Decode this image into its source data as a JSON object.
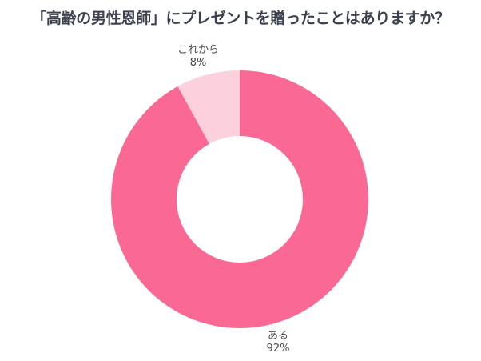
{
  "title": "「高齢の男性恩師」にプレゼントを贈ったことはありますか？",
  "chart_data": {
    "type": "pie",
    "variant": "donut",
    "title": "「高齢の男性恩師」にプレゼントを贈ったことはありますか？",
    "categories": [
      "ある",
      "これから"
    ],
    "values": [
      92,
      8
    ],
    "unit": "%",
    "colors": [
      "#f96994",
      "#fdd0de"
    ],
    "start_angle_deg": 0,
    "direction": "clockwise",
    "legend": "none",
    "data_labels": [
      {
        "category": "これから",
        "name": "これから",
        "value": "8%"
      },
      {
        "category": "ある",
        "name": "ある",
        "value": "92%"
      }
    ]
  },
  "labels": {
    "korekara": {
      "name": "これから",
      "value": "8%"
    },
    "aru": {
      "name": "ある",
      "value": "92%"
    }
  }
}
